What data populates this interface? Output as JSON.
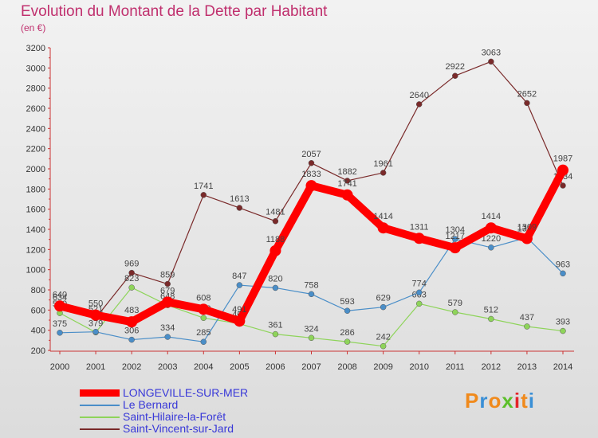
{
  "title": "Evolution du Montant de la Dette par Habitant",
  "subtitle": "(en €)",
  "logo": {
    "text": "Proxiti",
    "colors": [
      "#f08a1c",
      "#3a8fd6",
      "#f08a1c",
      "#5cbf2a",
      "#e5242b",
      "#f08a1c",
      "#3a8fd6"
    ]
  },
  "chart_data": {
    "type": "line",
    "x": [
      "2000",
      "2001",
      "2002",
      "2003",
      "2004",
      "2005",
      "2006",
      "2007",
      "2008",
      "2009",
      "2010",
      "2011",
      "2012",
      "2013",
      "2014"
    ],
    "ylim": [
      200,
      3200
    ],
    "yticks": [
      "200",
      "400",
      "600",
      "800",
      "1000",
      "1200",
      "1400",
      "1600",
      "1800",
      "2000",
      "2200",
      "2400",
      "2600",
      "2800",
      "3000",
      "3200"
    ],
    "grid": false,
    "legend_position": "bottom-left",
    "series": [
      {
        "name": "Saint-Vincent-sur-Jard",
        "color": "#7a2a2a",
        "values": [
          634,
          521,
          969,
          859,
          1741,
          1613,
          1481,
          2057,
          1882,
          1961,
          2640,
          2922,
          3063,
          2652,
          1834
        ],
        "labels": [
          "634",
          "521",
          "969",
          "859",
          "1741",
          "1613",
          "1481",
          "2057",
          "1882",
          "1961",
          "2640",
          "2922",
          "3063",
          "2652",
          "1834"
        ]
      },
      {
        "name": "Saint-Hilaire-la-Forêt",
        "color": "#8ed45a",
        "values": [
          570,
          379,
          823,
          648,
          522,
          464,
          361,
          324,
          286,
          242,
          663,
          579,
          512,
          437,
          393
        ],
        "labels": [
          "570",
          "379",
          "823",
          "648",
          "522",
          "464",
          "361",
          "324",
          "286",
          "242",
          "663",
          "579",
          "512",
          "437",
          "393"
        ]
      },
      {
        "name": "Le Bernard",
        "color": "#4a8ec8",
        "values": [
          375,
          384,
          306,
          334,
          285,
          847,
          820,
          758,
          593,
          629,
          774,
          1304,
          1220,
          1319,
          963
        ],
        "labels": [
          "375",
          "",
          "306",
          "334",
          "285",
          "847",
          "820",
          "758",
          "593",
          "629",
          "774",
          "1304",
          "1220",
          "1319",
          "963"
        ]
      },
      {
        "name": "LONGEVILLE-SUR-MER",
        "color": "#ff0000",
        "values": [
          640,
          550,
          483,
          679,
          608,
          491,
          1188,
          1833,
          1741,
          1414,
          1311,
          1217,
          1414,
          1309,
          1987
        ],
        "labels": [
          "640",
          "550",
          "483",
          "679",
          "608",
          "491",
          "1188",
          "1833",
          "1741",
          "1414",
          "1311",
          "1217",
          "1414",
          "1309",
          "1987"
        ]
      }
    ]
  },
  "legend": [
    {
      "name": "LONGEVILLE-SUR-MER",
      "color": "#ff0000"
    },
    {
      "name": "Le Bernard",
      "color": "#4a8ec8"
    },
    {
      "name": "Saint-Hilaire-la-Forêt",
      "color": "#8ed45a"
    },
    {
      "name": "Saint-Vincent-sur-Jard",
      "color": "#7a2a2a"
    }
  ]
}
